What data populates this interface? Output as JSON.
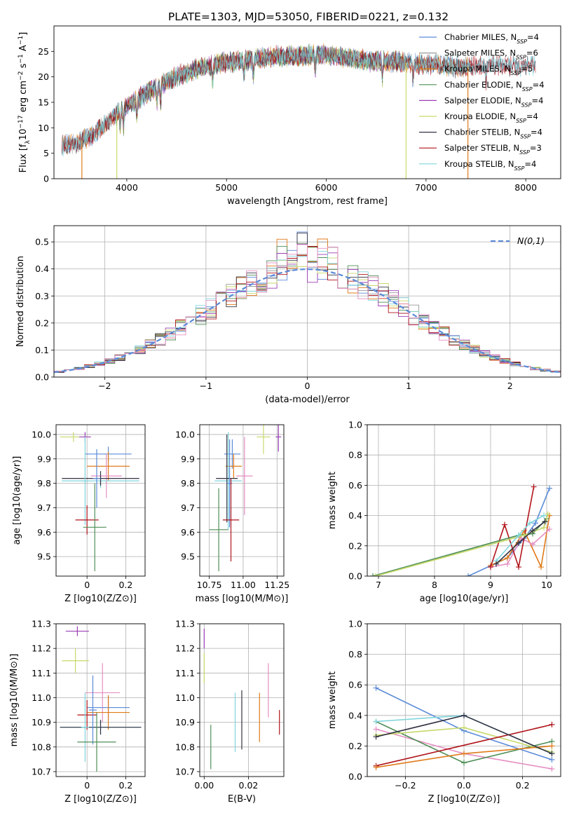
{
  "figure_title": "PLATE=1303, MJD=53050, FIBERID=0221, z=0.132",
  "colors": {
    "chabrier_miles": "#5b8bd8",
    "salpeter_miles": "#999999",
    "kroupa_miles": "#e07b1a",
    "chabrier_elodie": "#4f8f57",
    "salpeter_elodie": "#9b3fb5",
    "kroupa_elodie": "#c7d96b",
    "chabrier_stelib": "#333344",
    "salpeter_stelib": "#b0151c",
    "kroupa_stelib": "#7fd4dc",
    "pink": "#e58fc2"
  },
  "chart_data": [
    {
      "type": "line",
      "id": "spectrum",
      "xlabel": "wavelength [Angstrom, rest frame]",
      "ylabel": "Flux [f_λ10^-17 erg cm^-2 s^-1 A^-1]",
      "xlim": [
        3270,
        8350
      ],
      "ylim": [
        0,
        30
      ],
      "xticks": [
        4000,
        5000,
        6000,
        7000,
        8000
      ],
      "yticks": [
        0,
        5,
        10,
        15,
        20,
        25
      ],
      "legend_position": "right",
      "series": [
        {
          "name": "Chabrier MILES, N_SSP=4",
          "color_key": "chabrier_miles",
          "range": [
            3350,
            7420
          ]
        },
        {
          "name": "Salpeter MILES, N_SSP=6",
          "color_key": "salpeter_miles",
          "range": [
            3350,
            7420
          ]
        },
        {
          "name": "Kroupa MILES, N_SSP=5",
          "color_key": "kroupa_miles",
          "range": [
            3350,
            7420
          ]
        },
        {
          "name": "Chabrier ELODIE, N_SSP=4",
          "color_key": "chabrier_elodie",
          "range": [
            3900,
            6800
          ]
        },
        {
          "name": "Salpeter ELODIE, N_SSP=4",
          "color_key": "salpeter_elodie",
          "range": [
            3900,
            6800
          ]
        },
        {
          "name": "Kroupa ELODIE, N_SSP=4",
          "color_key": "kroupa_elodie",
          "range": [
            3900,
            6800
          ]
        },
        {
          "name": "Chabrier STELIB, N_SSP=4",
          "color_key": "chabrier_stelib",
          "range": [
            3350,
            8100
          ]
        },
        {
          "name": "Salpeter STELIB, N_SSP=3",
          "color_key": "salpeter_stelib",
          "range": [
            3350,
            8100
          ]
        },
        {
          "name": "Kroupa STELIB, N_SSP=4",
          "color_key": "kroupa_stelib",
          "range": [
            3350,
            8100
          ]
        }
      ],
      "continuum": [
        [
          3350,
          6.5
        ],
        [
          3500,
          7
        ],
        [
          3650,
          8.5
        ],
        [
          3800,
          11
        ],
        [
          3950,
          13.5
        ],
        [
          4100,
          15.5
        ],
        [
          4300,
          18
        ],
        [
          4500,
          20
        ],
        [
          4700,
          21.5
        ],
        [
          4900,
          22.5
        ],
        [
          5100,
          23
        ],
        [
          5300,
          23.5
        ],
        [
          5500,
          24
        ],
        [
          5700,
          24
        ],
        [
          5900,
          24.5
        ],
        [
          6100,
          24
        ],
        [
          6300,
          23.5
        ],
        [
          6500,
          23
        ],
        [
          6700,
          23
        ],
        [
          6900,
          22.5
        ],
        [
          7100,
          22.5
        ],
        [
          7300,
          22
        ],
        [
          7500,
          22
        ],
        [
          7700,
          22.5
        ],
        [
          7900,
          22
        ],
        [
          8100,
          22.5
        ]
      ],
      "drops": [
        {
          "x": 3550,
          "color_key": "kroupa_miles"
        },
        {
          "x": 3900,
          "color_key": "kroupa_elodie"
        },
        {
          "x": 6800,
          "color_key": "kroupa_elodie"
        },
        {
          "x": 7420,
          "color_key": "kroupa_miles"
        }
      ]
    },
    {
      "type": "line",
      "id": "residual_hist",
      "xlabel": "(data-model)/error",
      "ylabel": "Normed distribution",
      "xlim": [
        -2.5,
        2.5
      ],
      "ylim": [
        0,
        0.56
      ],
      "xticks": [
        -2,
        -1,
        0,
        1,
        2
      ],
      "yticks": [
        0.0,
        0.1,
        0.2,
        0.3,
        0.4,
        0.5
      ],
      "legend_position": "top-right",
      "gaussian_label": "N(0,1)",
      "bin_width": 0.1
    },
    {
      "type": "scatter",
      "id": "age_vs_Z",
      "xlabel": "Z [log10(Z/Z⊙)]",
      "ylabel": "age [log10(age/yr)]",
      "xlim": [
        -0.16,
        0.3
      ],
      "ylim": [
        9.42,
        10.04
      ],
      "xticks": [
        0.0,
        0.2
      ],
      "yticks": [
        9.5,
        9.6,
        9.7,
        9.8,
        9.9,
        10.0
      ],
      "points": [
        {
          "x": -0.07,
          "y": 9.99,
          "xerr": 0.07,
          "yerr": 0.02,
          "color_key": "kroupa_elodie"
        },
        {
          "x": -0.01,
          "y": 9.99,
          "xerr": 0.03,
          "yerr": 0.02,
          "color_key": "salpeter_elodie"
        },
        {
          "x": 0.11,
          "y": 9.92,
          "xerr": 0.12,
          "yerr": 0.03,
          "color_key": "chabrier_miles"
        },
        {
          "x": 0.11,
          "y": 9.87,
          "xerr": 0.11,
          "yerr": 0.06,
          "color_key": "kroupa_miles"
        },
        {
          "x": 0.1,
          "y": 9.83,
          "xerr": 0.08,
          "yerr": 0.09,
          "color_key": "pink"
        },
        {
          "x": 0.07,
          "y": 9.81,
          "xerr": 0.2,
          "yerr": 0.03,
          "color_key": "kroupa_stelib"
        },
        {
          "x": 0.07,
          "y": 9.82,
          "xerr": 0.2,
          "yerr": 0.03,
          "color_key": "chabrier_stelib"
        },
        {
          "x": -0.01,
          "y": 9.81,
          "xerr": 0.02,
          "yerr": 0.18,
          "color_key": "kroupa_stelib"
        },
        {
          "x": 0.05,
          "y": 9.82,
          "xerr": 0.02,
          "yerr": 0.12,
          "color_key": "chabrier_miles"
        },
        {
          "x": 0.0,
          "y": 9.65,
          "xerr": 0.06,
          "yerr": 0.06,
          "color_key": "salpeter_stelib"
        },
        {
          "x": 0.04,
          "y": 9.62,
          "xerr": 0.06,
          "yerr": 0.18,
          "color_key": "chabrier_elodie"
        }
      ]
    },
    {
      "type": "scatter",
      "id": "age_vs_mass",
      "xlabel": "mass [log10(M/M⊙)]",
      "ylabel": "",
      "xlim": [
        10.68,
        11.3
      ],
      "ylim": [
        9.42,
        10.04
      ],
      "xticks": [
        10.75,
        11.0,
        11.25
      ],
      "yticks": [
        9.5,
        9.6,
        9.7,
        9.8,
        9.9,
        10.0
      ],
      "points": [
        {
          "x": 11.15,
          "y": 9.99,
          "xerr": 0.05,
          "yerr": 0.07,
          "color_key": "kroupa_elodie"
        },
        {
          "x": 11.26,
          "y": 9.99,
          "xerr": 0.02,
          "yerr": 0.06,
          "color_key": "salpeter_elodie"
        },
        {
          "x": 10.92,
          "y": 9.92,
          "xerr": 0.06,
          "yerr": 0.06,
          "color_key": "chabrier_miles"
        },
        {
          "x": 10.93,
          "y": 9.87,
          "xerr": 0.06,
          "yerr": 0.05,
          "color_key": "kroupa_miles"
        },
        {
          "x": 11.01,
          "y": 9.83,
          "xerr": 0.06,
          "yerr": 0.16,
          "color_key": "pink"
        },
        {
          "x": 10.89,
          "y": 9.81,
          "xerr": 0.1,
          "yerr": 0.2,
          "color_key": "kroupa_stelib"
        },
        {
          "x": 10.88,
          "y": 9.82,
          "xerr": 0.08,
          "yerr": 0.18,
          "color_key": "chabrier_stelib"
        },
        {
          "x": 10.9,
          "y": 9.8,
          "xerr": 0.02,
          "yerr": 0.18,
          "color_key": "chabrier_miles"
        },
        {
          "x": 10.91,
          "y": 9.65,
          "xerr": 0.06,
          "yerr": 0.17,
          "color_key": "salpeter_stelib"
        },
        {
          "x": 10.82,
          "y": 9.61,
          "xerr": 0.07,
          "yerr": 0.17,
          "color_key": "chabrier_elodie"
        }
      ]
    },
    {
      "type": "line",
      "id": "massweight_vs_age",
      "xlabel": "age [log10(age/yr)]",
      "ylabel": "mass weight",
      "xlim": [
        6.8,
        10.25
      ],
      "ylim": [
        0,
        1
      ],
      "xticks": [
        7,
        8,
        9,
        10
      ],
      "yticks": [
        0.0,
        0.2,
        0.4,
        0.6,
        0.8,
        1.0
      ],
      "series": [
        {
          "color_key": "chabrier_miles",
          "x": [
            8.6,
            9.3,
            9.6,
            9.8,
            10.05
          ],
          "y": [
            0.0,
            0.12,
            0.25,
            0.35,
            0.58
          ]
        },
        {
          "color_key": "kroupa_miles",
          "x": [
            9.0,
            9.3,
            9.6,
            9.9,
            10.05
          ],
          "y": [
            0.07,
            0.12,
            0.3,
            0.06,
            0.4
          ]
        },
        {
          "color_key": "pink",
          "x": [
            9.0,
            9.3,
            9.55,
            9.75,
            10.05
          ],
          "y": [
            0.06,
            0.08,
            0.25,
            0.21,
            0.31
          ]
        },
        {
          "color_key": "salpeter_stelib",
          "x": [
            9.0,
            9.25,
            9.5,
            9.77
          ],
          "y": [
            0.06,
            0.34,
            0.06,
            0.59
          ]
        },
        {
          "color_key": "chabrier_elodie",
          "x": [
            6.9,
            9.5,
            9.75,
            10.0
          ],
          "y": [
            0.0,
            0.27,
            0.28,
            0.38
          ]
        },
        {
          "color_key": "kroupa_elodie",
          "x": [
            6.95,
            9.6,
            9.95,
            10.02
          ],
          "y": [
            0.0,
            0.27,
            0.32,
            0.41
          ]
        },
        {
          "color_key": "kroupa_stelib",
          "x": [
            9.1,
            9.5,
            9.7,
            9.95
          ],
          "y": [
            0.1,
            0.27,
            0.35,
            0.4
          ]
        },
        {
          "color_key": "chabrier_stelib",
          "x": [
            9.1,
            9.5,
            9.75,
            9.97
          ],
          "y": [
            0.08,
            0.22,
            0.3,
            0.36
          ]
        }
      ]
    },
    {
      "type": "scatter",
      "id": "mass_vs_Z",
      "xlabel": "Z [log10(Z/Z⊙)]",
      "ylabel": "mass [log10(M/M⊙)]",
      "xlim": [
        -0.16,
        0.3
      ],
      "ylim": [
        10.68,
        11.3
      ],
      "xticks": [
        0.0,
        0.2
      ],
      "yticks": [
        10.7,
        10.8,
        10.9,
        11.0,
        11.1,
        11.2,
        11.3
      ],
      "points": [
        {
          "x": -0.05,
          "y": 11.27,
          "xerr": 0.06,
          "yerr": 0.02,
          "color_key": "salpeter_elodie"
        },
        {
          "x": -0.06,
          "y": 11.15,
          "xerr": 0.07,
          "yerr": 0.05,
          "color_key": "kroupa_elodie"
        },
        {
          "x": 0.08,
          "y": 11.02,
          "xerr": 0.09,
          "yerr": 0.12,
          "color_key": "pink"
        },
        {
          "x": 0.11,
          "y": 10.96,
          "xerr": 0.11,
          "yerr": 0.05,
          "color_key": "chabrier_miles"
        },
        {
          "x": 0.11,
          "y": 10.94,
          "xerr": 0.11,
          "yerr": 0.07,
          "color_key": "kroupa_miles"
        },
        {
          "x": 0.0,
          "y": 10.93,
          "xerr": 0.05,
          "yerr": 0.06,
          "color_key": "salpeter_stelib"
        },
        {
          "x": 0.07,
          "y": 10.88,
          "xerr": 0.21,
          "yerr": 0.03,
          "color_key": "kroupa_stelib"
        },
        {
          "x": 0.07,
          "y": 10.88,
          "xerr": 0.21,
          "yerr": 0.03,
          "color_key": "chabrier_stelib"
        },
        {
          "x": -0.01,
          "y": 10.88,
          "xerr": 0.02,
          "yerr": 0.14,
          "color_key": "kroupa_stelib"
        },
        {
          "x": 0.03,
          "y": 10.95,
          "xerr": 0.02,
          "yerr": 0.14,
          "color_key": "chabrier_miles"
        },
        {
          "x": 0.05,
          "y": 10.82,
          "xerr": 0.1,
          "yerr": 0.12,
          "color_key": "chabrier_elodie"
        }
      ]
    },
    {
      "type": "scatter",
      "id": "mass_vs_ebv",
      "xlabel": "E(B-V)",
      "ylabel": "",
      "xlim": [
        -0.002,
        0.036
      ],
      "ylim": [
        10.68,
        11.3
      ],
      "xticks": [
        0.0,
        0.02
      ],
      "yticks": [
        10.7,
        10.8,
        10.9,
        11.0,
        11.1,
        11.2,
        11.3
      ],
      "points": [
        {
          "x": 0.0,
          "y": 11.24,
          "xerr": 0,
          "yerr": 0.04,
          "color_key": "salpeter_elodie"
        },
        {
          "x": 0.0,
          "y": 11.12,
          "xerr": 0,
          "yerr": 0.06,
          "color_key": "kroupa_elodie"
        },
        {
          "x": 0.003,
          "y": 10.8,
          "xerr": 0,
          "yerr": 0.09,
          "color_key": "chabrier_elodie"
        },
        {
          "x": 0.014,
          "y": 10.9,
          "xerr": 0,
          "yerr": 0.12,
          "color_key": "kroupa_stelib"
        },
        {
          "x": 0.017,
          "y": 10.91,
          "xerr": 0,
          "yerr": 0.12,
          "color_key": "chabrier_stelib"
        },
        {
          "x": 0.025,
          "y": 10.92,
          "xerr": 0,
          "yerr": 0.1,
          "color_key": "kroupa_miles"
        },
        {
          "x": 0.029,
          "y": 11.03,
          "xerr": 0,
          "yerr": 0.11,
          "color_key": "pink"
        },
        {
          "x": 0.034,
          "y": 10.9,
          "xerr": 0,
          "yerr": 0.05,
          "color_key": "salpeter_stelib"
        }
      ]
    },
    {
      "type": "line",
      "id": "massweight_vs_Z",
      "xlabel": "Z [log10(Z/Z⊙)]",
      "ylabel": "mass weight",
      "xlim": [
        -0.33,
        0.33
      ],
      "ylim": [
        0,
        1
      ],
      "xticks": [
        -0.2,
        0.0,
        0.2
      ],
      "yticks": [
        0.0,
        0.2,
        0.4,
        0.6,
        0.8,
        1.0
      ],
      "series": [
        {
          "color_key": "chabrier_miles",
          "x": [
            -0.3,
            0.0,
            0.3
          ],
          "y": [
            0.58,
            0.3,
            0.11
          ]
        },
        {
          "color_key": "pink",
          "x": [
            -0.3,
            0.0,
            0.3
          ],
          "y": [
            0.31,
            0.15,
            0.05
          ]
        },
        {
          "color_key": "chabrier_elodie",
          "x": [
            -0.3,
            0.0,
            0.3
          ],
          "y": [
            0.36,
            0.09,
            0.23
          ]
        },
        {
          "color_key": "kroupa_elodie",
          "x": [
            -0.3,
            0.0,
            0.3
          ],
          "y": [
            0.27,
            0.32,
            0.16
          ]
        },
        {
          "color_key": "salpeter_stelib",
          "x": [
            -0.3,
            0.3
          ],
          "y": [
            0.07,
            0.34
          ]
        },
        {
          "color_key": "kroupa_miles",
          "x": [
            -0.3,
            0.0,
            0.3
          ],
          "y": [
            0.06,
            0.15,
            0.2
          ]
        },
        {
          "color_key": "kroupa_stelib",
          "x": [
            -0.3,
            0.0,
            0.3
          ],
          "y": [
            0.36,
            0.4,
            0.15
          ]
        },
        {
          "color_key": "chabrier_stelib",
          "x": [
            -0.3,
            0.0,
            0.3
          ],
          "y": [
            0.26,
            0.4,
            0.15
          ]
        }
      ]
    }
  ]
}
